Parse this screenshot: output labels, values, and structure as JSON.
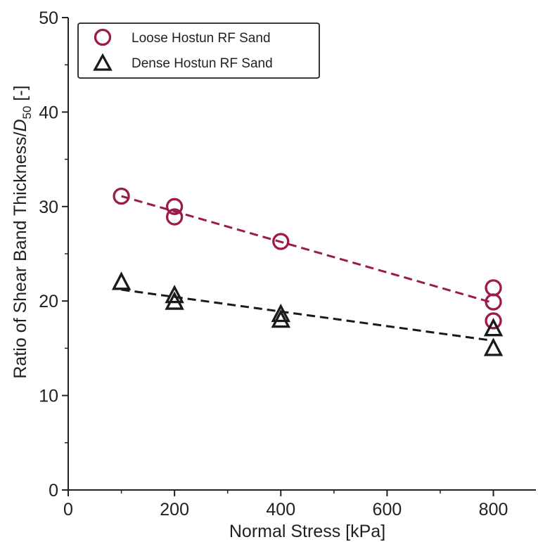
{
  "chart_data": {
    "type": "scatter",
    "xlabel": "Normal Stress [kPa]",
    "ylabel": {
      "main": "Ratio of Shear Band Thickness/",
      "symbol": "D",
      "subscript": "50",
      "unit": " [-]"
    },
    "xlim": [
      0,
      880
    ],
    "ylim": [
      0,
      50
    ],
    "x_ticks": [
      0,
      200,
      400,
      600,
      800
    ],
    "y_ticks": [
      0,
      10,
      20,
      30,
      40,
      50
    ],
    "x_minor_ticks": [
      100,
      300,
      500,
      700
    ],
    "y_minor_ticks": [
      5,
      15,
      25,
      35,
      45
    ],
    "grid": false,
    "legend_position": "top-left",
    "series": [
      {
        "name": "Loose Hostun RF Sand",
        "marker": "circle",
        "color": "#9b1b4c",
        "points": [
          {
            "x": 100,
            "y": 31.1
          },
          {
            "x": 200,
            "y": 30.0
          },
          {
            "x": 200,
            "y": 28.9
          },
          {
            "x": 400,
            "y": 26.3
          },
          {
            "x": 800,
            "y": 21.4
          },
          {
            "x": 800,
            "y": 19.9
          },
          {
            "x": 800,
            "y": 17.9
          }
        ],
        "trendline": {
          "x": [
            100,
            800
          ],
          "y": [
            31.1,
            19.8
          ]
        }
      },
      {
        "name": "Dense Hostun RF Sand",
        "marker": "triangle",
        "color": "#1a1a1a",
        "points": [
          {
            "x": 100,
            "y": 22.0
          },
          {
            "x": 200,
            "y": 20.6
          },
          {
            "x": 200,
            "y": 19.9
          },
          {
            "x": 400,
            "y": 18.6
          },
          {
            "x": 400,
            "y": 18.0
          },
          {
            "x": 800,
            "y": 17.1
          },
          {
            "x": 800,
            "y": 15.0
          }
        ],
        "trendline": {
          "x": [
            100,
            800
          ],
          "y": [
            21.2,
            15.8
          ]
        }
      }
    ]
  }
}
